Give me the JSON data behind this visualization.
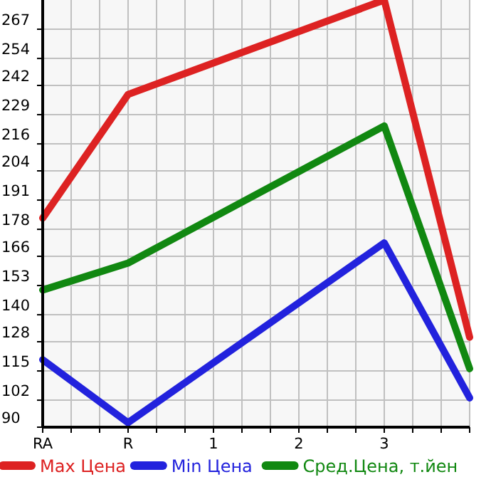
{
  "chart_data": {
    "type": "line",
    "categories": [
      "RA",
      "R",
      "1",
      "2",
      "3",
      null
    ],
    "ylim": [
      90,
      280
    ],
    "yticks": [
      90,
      102,
      115,
      128,
      140,
      153,
      166,
      178,
      191,
      204,
      216,
      229,
      242,
      254,
      267
    ],
    "grid": true,
    "legend": "bottom",
    "marker": "none",
    "line_style": "solid",
    "series": [
      {
        "name": "Max Цена",
        "color": "#dd2222",
        "values": [
          183,
          238,
          null,
          null,
          280,
          130
        ]
      },
      {
        "name": "Min Цена",
        "color": "#2222dd",
        "values": [
          120,
          92,
          null,
          null,
          172,
          103
        ]
      },
      {
        "name": "Сред.Цена, т.йен",
        "color": "#118811",
        "values": [
          151,
          163,
          null,
          null,
          224,
          116
        ]
      }
    ]
  }
}
